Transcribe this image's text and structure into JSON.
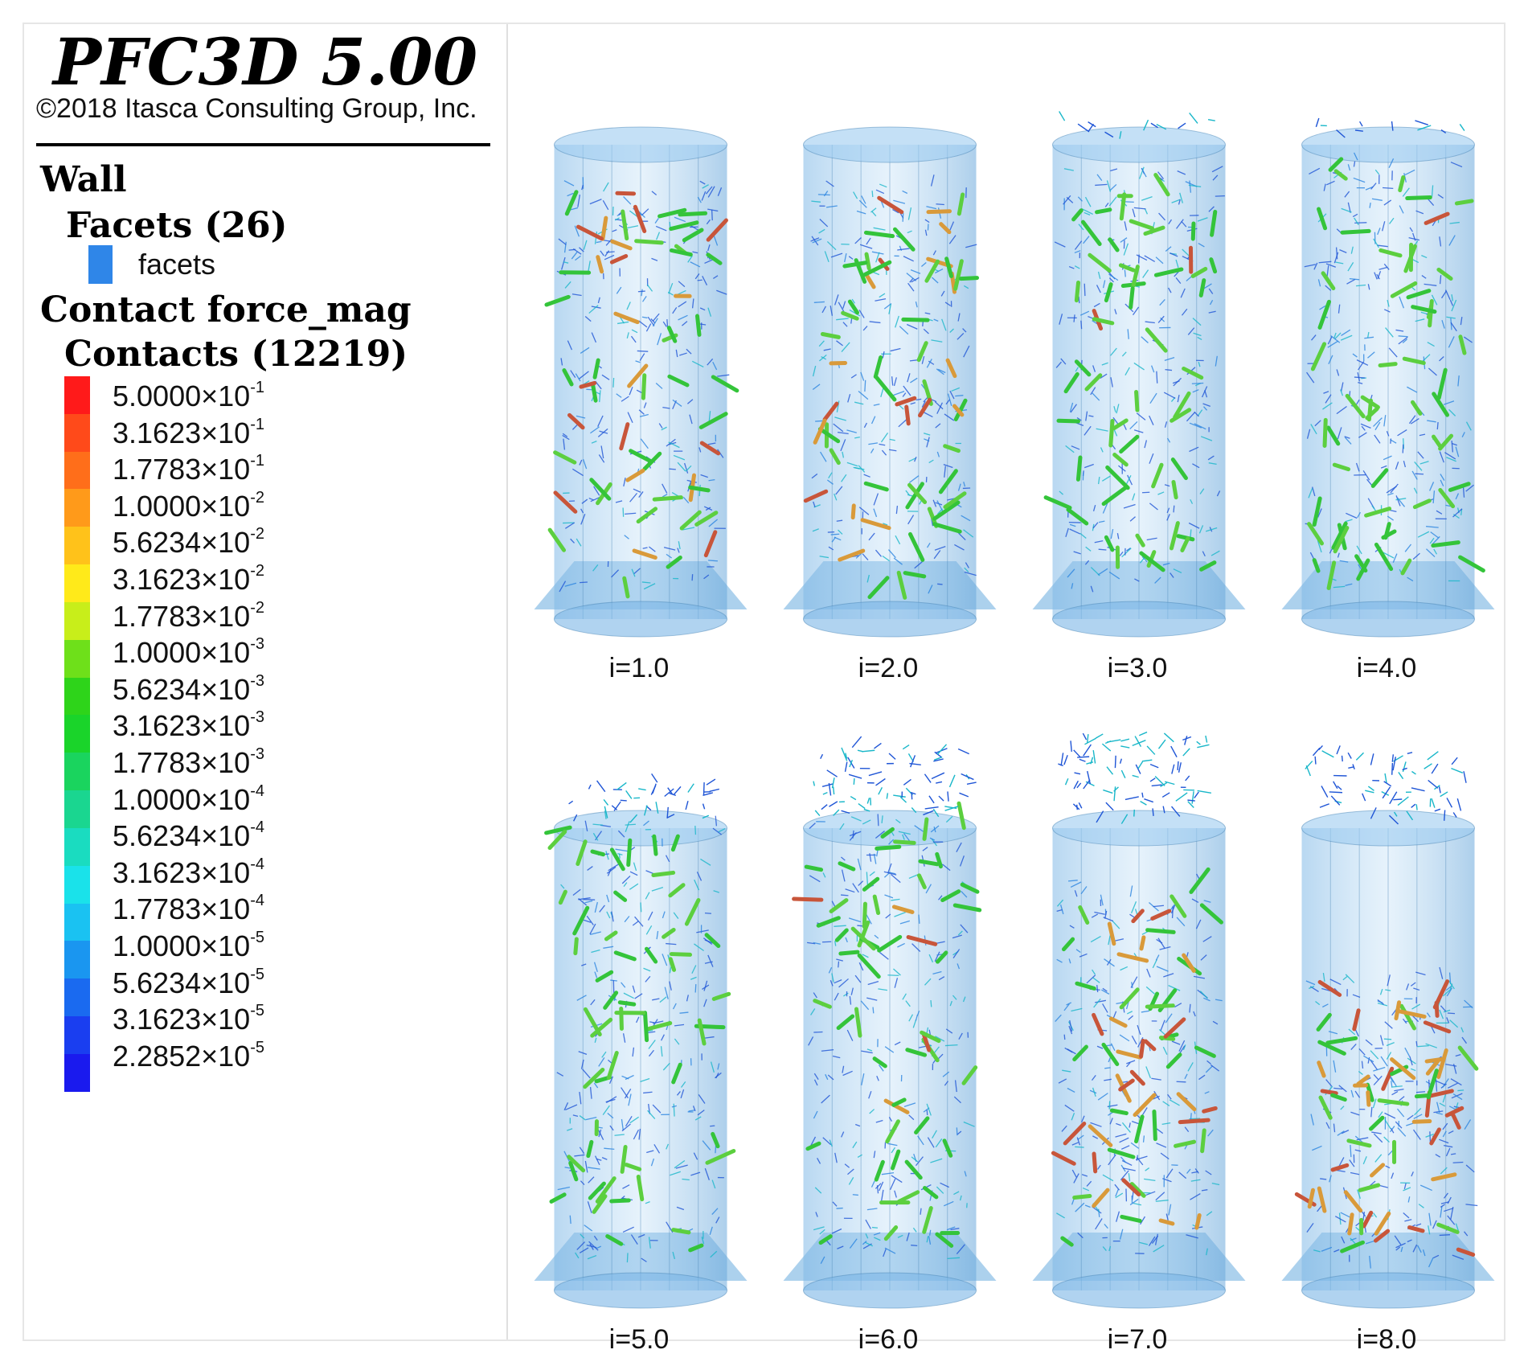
{
  "title": "PFC3D 5.00",
  "copyright": "©2018 Itasca Consulting Group, Inc.",
  "legend": {
    "wall_heading": "Wall",
    "facets_heading": "Facets (26)",
    "facets_label": "facets",
    "facets_color": "#2f86e8",
    "contact_heading": "Contact force_mag",
    "contacts_heading": "Contacts (12219)",
    "scale": [
      {
        "mantissa": "5.0000×10",
        "exp": "-1",
        "color": "#ff1a1a"
      },
      {
        "mantissa": "3.1623×10",
        "exp": "-1",
        "color": "#ff4a1a"
      },
      {
        "mantissa": "1.7783×10",
        "exp": "-1",
        "color": "#ff6e1a"
      },
      {
        "mantissa": "1.0000×10",
        "exp": "-2",
        "color": "#ff9a1a"
      },
      {
        "mantissa": "5.6234×10",
        "exp": "-2",
        "color": "#ffc21a"
      },
      {
        "mantissa": "3.1623×10",
        "exp": "-2",
        "color": "#ffea1a"
      },
      {
        "mantissa": "1.7783×10",
        "exp": "-2",
        "color": "#c8ee1a"
      },
      {
        "mantissa": "1.0000×10",
        "exp": "-3",
        "color": "#6ee01a"
      },
      {
        "mantissa": "5.6234×10",
        "exp": "-3",
        "color": "#2ed41a"
      },
      {
        "mantissa": "3.1623×10",
        "exp": "-3",
        "color": "#1ad42a"
      },
      {
        "mantissa": "1.7783×10",
        "exp": "-3",
        "color": "#1ad45e"
      },
      {
        "mantissa": "1.0000×10",
        "exp": "-4",
        "color": "#1ad690"
      },
      {
        "mantissa": "5.6234×10",
        "exp": "-4",
        "color": "#1adcc0"
      },
      {
        "mantissa": "3.1623×10",
        "exp": "-4",
        "color": "#1ae2ea"
      },
      {
        "mantissa": "1.7783×10",
        "exp": "-4",
        "color": "#1ac2f2"
      },
      {
        "mantissa": "1.0000×10",
        "exp": "-5",
        "color": "#1a96f0"
      },
      {
        "mantissa": "5.6234×10",
        "exp": "-5",
        "color": "#1a6af0"
      },
      {
        "mantissa": "3.1623×10",
        "exp": "-5",
        "color": "#1a3ef0"
      },
      {
        "mantissa": "2.2852×10",
        "exp": "-5",
        "color": "#1a1aee"
      }
    ]
  },
  "panels": [
    {
      "label": "i=1.0",
      "fill_fraction": 0.85,
      "overflow": 0,
      "warm": 0.35
    },
    {
      "label": "i=2.0",
      "fill_fraction": 0.85,
      "overflow": 0,
      "warm": 0.25
    },
    {
      "label": "i=3.0",
      "fill_fraction": 0.88,
      "overflow": 0.1,
      "warm": 0.05
    },
    {
      "label": "i=4.0",
      "fill_fraction": 0.9,
      "overflow": 0.08,
      "warm": 0.03
    },
    {
      "label": "i=5.0",
      "fill_fraction": 0.95,
      "overflow": 0.3,
      "warm": 0.0
    },
    {
      "label": "i=6.0",
      "fill_fraction": 0.95,
      "overflow": 0.6,
      "warm": 0.05
    },
    {
      "label": "i=7.0",
      "fill_fraction": 0.82,
      "overflow": 0.7,
      "warm": 0.55
    },
    {
      "label": "i=8.0",
      "fill_fraction": 0.62,
      "overflow": 0.55,
      "warm": 0.6
    }
  ]
}
